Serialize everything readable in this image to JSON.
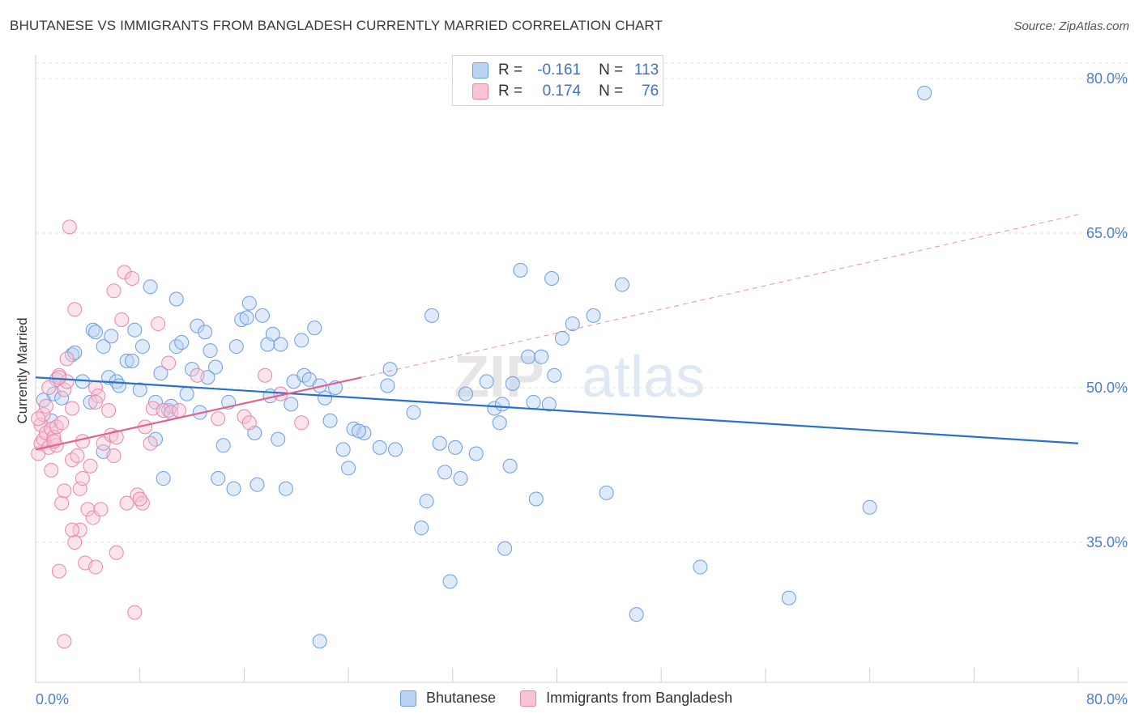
{
  "title": "BHUTANESE VS IMMIGRANTS FROM BANGLADESH CURRENTLY MARRIED CORRELATION CHART",
  "source": "Source: ZipAtlas.com",
  "watermark": "ZIPatlas",
  "legend": {
    "r_label": "R =",
    "n_label": "N =",
    "rows": [
      {
        "r": "-0.161",
        "n": "113",
        "color": "#6b9de0",
        "fill": "#b9d3f5"
      },
      {
        "r": "0.174",
        "n": "76",
        "color": "#ea86a8",
        "fill": "#f8c3d4"
      }
    ]
  },
  "bottom_legend": [
    "Bhutanese",
    "Immigrants from Bangladesh"
  ],
  "colors": {
    "blue_line": "#2b6fcf",
    "pink_line": "#e0628e",
    "blue_point": "#6b9de0",
    "pink_point": "#ea86a8",
    "axis_text": "#4a7fd0",
    "grid": "#e3e3e3"
  },
  "chart_data": {
    "type": "scatter",
    "title": "BHUTANESE VS IMMIGRANTS FROM BANGLADESH CURRENTLY MARRIED CORRELATION CHART",
    "xlabel": "",
    "ylabel": "Currently Married",
    "xlim": [
      0,
      80
    ],
    "ylim": [
      20,
      83
    ],
    "x_tick_labels": [
      "0.0%",
      "80.0%"
    ],
    "y_ticks": [
      35,
      50,
      65,
      80
    ],
    "y_tick_labels": [
      "35.0%",
      "50.0%",
      "65.0%",
      "80.0%"
    ],
    "grid": true,
    "legend_position": "top-center",
    "series": [
      {
        "name": "Bhutanese",
        "R": -0.161,
        "N": 113,
        "trend": {
          "x": [
            0,
            80
          ],
          "y": [
            51.0,
            44.6
          ]
        },
        "points": [
          [
            0.6,
            48.8
          ],
          [
            1.2,
            46.8
          ],
          [
            1.4,
            49.4
          ],
          [
            1.6,
            50.8
          ],
          [
            2.0,
            49.0
          ],
          [
            2.8,
            53.2
          ],
          [
            3.0,
            53.4
          ],
          [
            3.6,
            50.6
          ],
          [
            4.2,
            48.6
          ],
          [
            4.4,
            55.6
          ],
          [
            4.6,
            55.4
          ],
          [
            5.2,
            54.0
          ],
          [
            5.6,
            51.0
          ],
          [
            5.8,
            55.0
          ],
          [
            6.2,
            50.6
          ],
          [
            6.4,
            50.2
          ],
          [
            7.0,
            52.6
          ],
          [
            7.4,
            52.6
          ],
          [
            7.6,
            55.6
          ],
          [
            8.0,
            49.8
          ],
          [
            8.2,
            54.0
          ],
          [
            8.8,
            59.8
          ],
          [
            9.2,
            45.0
          ],
          [
            9.6,
            51.4
          ],
          [
            9.8,
            41.2
          ],
          [
            10.2,
            47.8
          ],
          [
            10.4,
            48.2
          ],
          [
            10.8,
            58.6
          ],
          [
            10.8,
            54.0
          ],
          [
            11.2,
            54.4
          ],
          [
            11.6,
            49.4
          ],
          [
            12.0,
            51.8
          ],
          [
            12.4,
            56.0
          ],
          [
            12.6,
            47.6
          ],
          [
            13.0,
            55.4
          ],
          [
            13.4,
            53.6
          ],
          [
            13.8,
            52.0
          ],
          [
            14.0,
            41.2
          ],
          [
            14.4,
            44.4
          ],
          [
            14.8,
            48.6
          ],
          [
            15.2,
            40.2
          ],
          [
            15.4,
            54.0
          ],
          [
            15.8,
            56.6
          ],
          [
            16.2,
            56.8
          ],
          [
            16.4,
            58.2
          ],
          [
            16.8,
            45.6
          ],
          [
            17.0,
            40.6
          ],
          [
            17.4,
            57.0
          ],
          [
            17.8,
            54.2
          ],
          [
            18.2,
            55.2
          ],
          [
            18.6,
            45.0
          ],
          [
            18.8,
            54.2
          ],
          [
            19.2,
            40.2
          ],
          [
            19.6,
            48.4
          ],
          [
            19.8,
            50.6
          ],
          [
            20.4,
            54.6
          ],
          [
            20.6,
            51.2
          ],
          [
            21.0,
            50.8
          ],
          [
            21.4,
            55.8
          ],
          [
            21.8,
            50.2
          ],
          [
            22.2,
            49.0
          ],
          [
            22.6,
            46.8
          ],
          [
            23.0,
            50.0
          ],
          [
            23.6,
            44.0
          ],
          [
            24.0,
            42.2
          ],
          [
            24.4,
            46.0
          ],
          [
            25.2,
            45.6
          ],
          [
            26.4,
            44.2
          ],
          [
            27.0,
            50.2
          ],
          [
            27.2,
            51.8
          ],
          [
            27.6,
            44.0
          ],
          [
            29.0,
            47.6
          ],
          [
            29.6,
            36.4
          ],
          [
            30.4,
            57.0
          ],
          [
            31.0,
            44.6
          ],
          [
            31.4,
            41.8
          ],
          [
            31.8,
            31.2
          ],
          [
            32.2,
            44.2
          ],
          [
            32.6,
            41.2
          ],
          [
            33.0,
            49.4
          ],
          [
            33.8,
            43.6
          ],
          [
            34.6,
            50.6
          ],
          [
            35.2,
            48.0
          ],
          [
            35.6,
            46.6
          ],
          [
            35.8,
            48.4
          ],
          [
            36.4,
            42.4
          ],
          [
            36.6,
            50.4
          ],
          [
            37.2,
            61.4
          ],
          [
            37.8,
            53.0
          ],
          [
            38.2,
            48.6
          ],
          [
            38.4,
            39.2
          ],
          [
            38.8,
            53.0
          ],
          [
            39.4,
            48.4
          ],
          [
            39.6,
            60.6
          ],
          [
            39.8,
            51.2
          ],
          [
            40.4,
            54.8
          ],
          [
            41.2,
            56.2
          ],
          [
            42.8,
            57.0
          ],
          [
            43.8,
            39.8
          ],
          [
            45.0,
            60.0
          ],
          [
            46.1,
            28.0
          ],
          [
            51.0,
            32.6
          ],
          [
            57.8,
            29.6
          ],
          [
            64.0,
            38.4
          ],
          [
            68.2,
            78.6
          ],
          [
            21.8,
            25.4
          ],
          [
            5.2,
            43.8
          ],
          [
            24.8,
            45.8
          ],
          [
            13.2,
            51.0
          ],
          [
            18.0,
            49.2
          ],
          [
            30.0,
            39.0
          ],
          [
            9.2,
            48.6
          ],
          [
            36.0,
            34.4
          ]
        ]
      },
      {
        "name": "Immigrants from Bangladesh",
        "R": 0.174,
        "N": 76,
        "trend": {
          "x": [
            0,
            25
          ],
          "y": [
            44.0,
            51.0
          ]
        },
        "trend_dashed": {
          "x": [
            25,
            80
          ],
          "y": [
            51.0,
            66.8
          ]
        },
        "points": [
          [
            0.2,
            43.6
          ],
          [
            0.4,
            44.6
          ],
          [
            0.4,
            46.4
          ],
          [
            0.6,
            47.4
          ],
          [
            0.6,
            45.0
          ],
          [
            0.8,
            48.2
          ],
          [
            0.8,
            45.6
          ],
          [
            1.0,
            44.2
          ],
          [
            1.2,
            46.0
          ],
          [
            1.2,
            42.0
          ],
          [
            1.4,
            45.2
          ],
          [
            1.6,
            46.2
          ],
          [
            1.6,
            44.4
          ],
          [
            1.8,
            51.2
          ],
          [
            2.0,
            46.6
          ],
          [
            2.0,
            38.8
          ],
          [
            2.2,
            49.8
          ],
          [
            2.4,
            52.8
          ],
          [
            2.4,
            50.6
          ],
          [
            2.6,
            65.6
          ],
          [
            2.8,
            48.0
          ],
          [
            2.8,
            43.0
          ],
          [
            3.0,
            57.6
          ],
          [
            3.2,
            43.4
          ],
          [
            3.4,
            40.2
          ],
          [
            3.6,
            41.2
          ],
          [
            3.8,
            33.0
          ],
          [
            4.0,
            38.2
          ],
          [
            4.2,
            42.4
          ],
          [
            4.4,
            37.4
          ],
          [
            4.6,
            32.6
          ],
          [
            4.6,
            50.0
          ],
          [
            4.8,
            49.2
          ],
          [
            5.0,
            38.2
          ],
          [
            5.2,
            44.6
          ],
          [
            5.6,
            47.8
          ],
          [
            5.8,
            45.4
          ],
          [
            6.0,
            43.4
          ],
          [
            6.2,
            34.0
          ],
          [
            6.2,
            45.2
          ],
          [
            6.6,
            56.6
          ],
          [
            6.8,
            61.2
          ],
          [
            7.0,
            38.8
          ],
          [
            7.4,
            60.6
          ],
          [
            7.6,
            28.2
          ],
          [
            7.8,
            39.6
          ],
          [
            8.2,
            38.8
          ],
          [
            8.4,
            46.2
          ],
          [
            8.8,
            44.6
          ],
          [
            9.0,
            48.0
          ],
          [
            9.4,
            56.2
          ],
          [
            9.8,
            47.8
          ],
          [
            10.2,
            52.4
          ],
          [
            10.4,
            47.6
          ],
          [
            11.0,
            47.8
          ],
          [
            12.4,
            51.2
          ],
          [
            14.0,
            47.0
          ],
          [
            16.0,
            47.2
          ],
          [
            16.4,
            46.6
          ],
          [
            17.6,
            51.2
          ],
          [
            18.8,
            49.4
          ],
          [
            20.4,
            46.6
          ],
          [
            1.0,
            50.0
          ],
          [
            2.2,
            40.0
          ],
          [
            3.0,
            35.0
          ],
          [
            1.8,
            32.2
          ],
          [
            2.2,
            25.4
          ],
          [
            3.4,
            36.2
          ],
          [
            6.0,
            59.4
          ],
          [
            2.8,
            36.2
          ],
          [
            8.0,
            39.2
          ],
          [
            4.6,
            48.6
          ],
          [
            1.4,
            44.8
          ],
          [
            0.2,
            47.0
          ],
          [
            1.8,
            51.0
          ],
          [
            3.6,
            44.8
          ]
        ]
      }
    ]
  }
}
